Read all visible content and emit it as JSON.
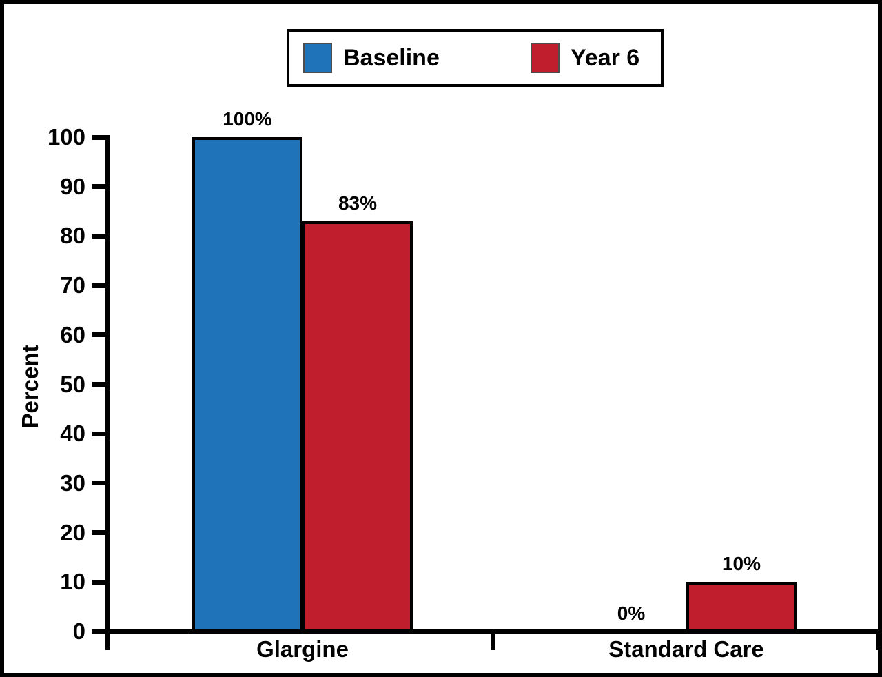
{
  "chart_data": {
    "type": "bar",
    "title": "",
    "ylabel": "Percent",
    "ylim": [
      0,
      100
    ],
    "ytick_interval": 10,
    "yticks": [
      "0",
      "10",
      "20",
      "30",
      "40",
      "50",
      "60",
      "70",
      "80",
      "90",
      "100"
    ],
    "categories": [
      "Glargine",
      "Standard Care"
    ],
    "series": [
      {
        "name": "Baseline",
        "color": "#1f73b8",
        "values": [
          100,
          0
        ],
        "labels": [
          "100%",
          "0%"
        ]
      },
      {
        "name": "Year 6",
        "color": "#c11e2d",
        "values": [
          83,
          10
        ],
        "labels": [
          "83%",
          "10%"
        ]
      }
    ],
    "legend_position": "top",
    "grid": false,
    "bar_border_color": "#000000",
    "axis_color": "#000000",
    "background_color": "#ffffff"
  }
}
